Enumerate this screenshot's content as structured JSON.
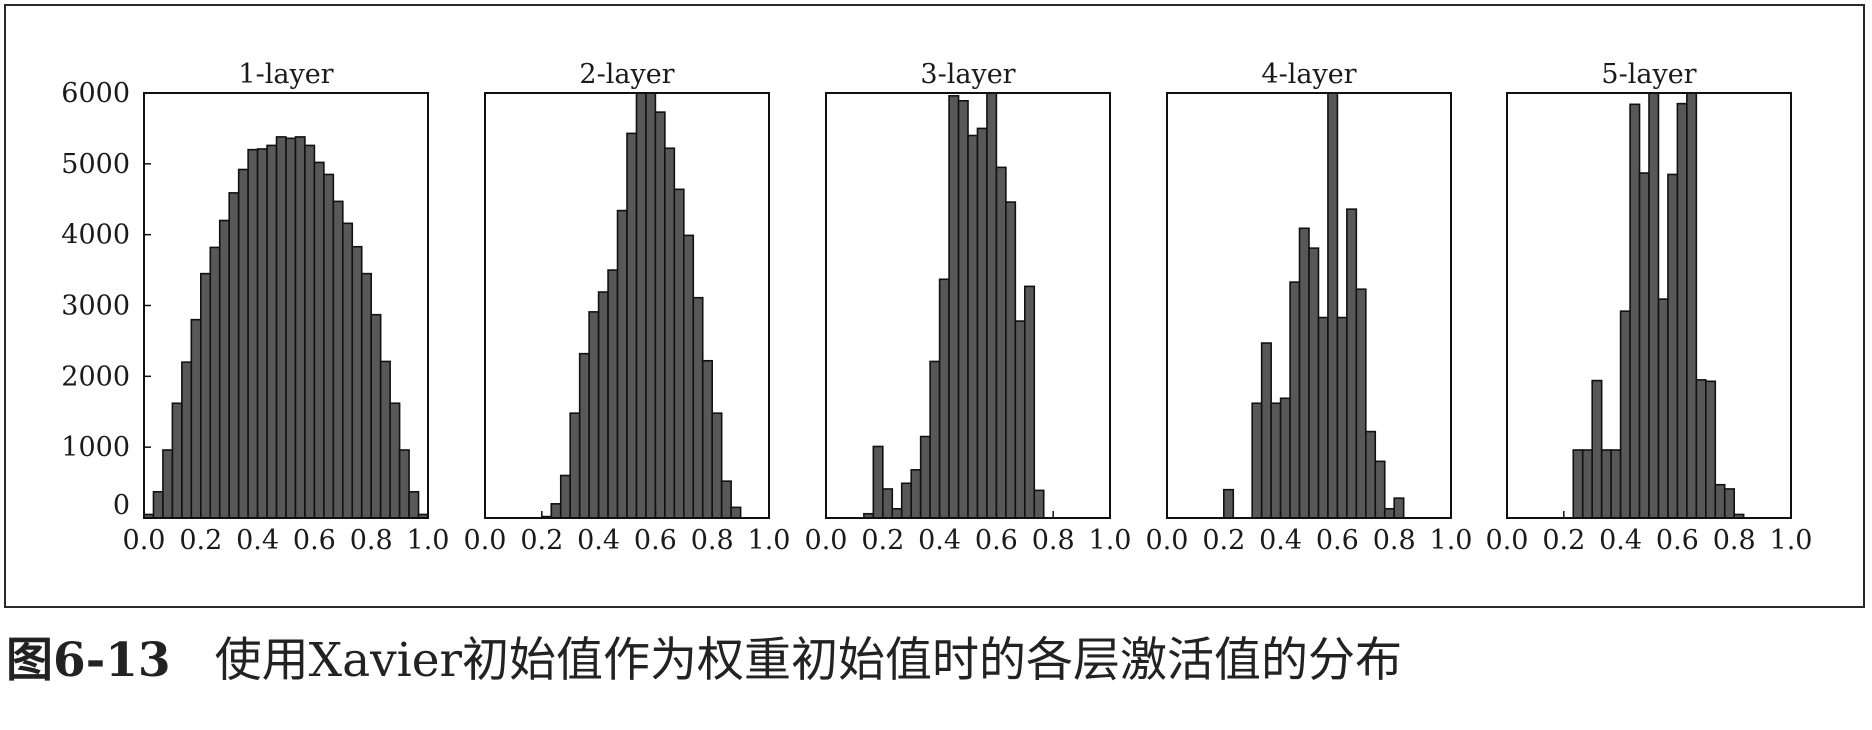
{
  "caption": {
    "figure_number": "图6-13",
    "text": "使用Xavier初始值作为权重初始值时的各层激活值的分布"
  },
  "colors": {
    "bar_fill": "#585858",
    "bar_edge": "#111111",
    "frame": "#2a2a2a"
  },
  "chart_data": [
    {
      "type": "bar",
      "title": "1-layer",
      "x_range": [
        0.0,
        1.0
      ],
      "ylim": [
        0,
        6000
      ],
      "bin_width": 0.033333,
      "x_ticks": [
        "0.0",
        "0.2",
        "0.4",
        "0.6",
        "0.8",
        "1.0"
      ],
      "y_ticks": [
        "0",
        "1000",
        "2000",
        "3000",
        "4000",
        "5000",
        "6000"
      ],
      "values": [
        50,
        370,
        960,
        1620,
        2200,
        2800,
        3450,
        3820,
        4200,
        4590,
        4920,
        5200,
        5210,
        5260,
        5380,
        5360,
        5380,
        5260,
        5020,
        4850,
        4470,
        4160,
        3830,
        3450,
        2870,
        2210,
        1620,
        960,
        370,
        50
      ]
    },
    {
      "type": "bar",
      "title": "2-layer",
      "x_range": [
        0.0,
        1.0
      ],
      "ylim": [
        0,
        6000
      ],
      "bin_width": 0.033333,
      "x_ticks": [
        "0.0",
        "0.2",
        "0.4",
        "0.6",
        "0.8",
        "1.0"
      ],
      "values": [
        0,
        0,
        0,
        0,
        0,
        0,
        20,
        200,
        600,
        1480,
        2320,
        2910,
        3190,
        3500,
        4340,
        5430,
        6000,
        6000,
        5730,
        5220,
        4640,
        3990,
        3110,
        2220,
        1480,
        520,
        150,
        0,
        0,
        0
      ]
    },
    {
      "type": "bar",
      "title": "3-layer",
      "x_range": [
        0.0,
        1.0
      ],
      "ylim": [
        0,
        6000
      ],
      "bin_width": 0.033333,
      "x_ticks": [
        "0.0",
        "0.2",
        "0.4",
        "0.6",
        "0.8",
        "1.0"
      ],
      "values": [
        0,
        0,
        0,
        0,
        60,
        1010,
        410,
        130,
        490,
        680,
        1150,
        2210,
        3370,
        5960,
        5890,
        5400,
        5500,
        6000,
        4950,
        4460,
        2780,
        3270,
        390,
        0,
        0,
        0,
        0,
        0,
        0,
        0
      ]
    },
    {
      "type": "bar",
      "title": "4-layer",
      "x_range": [
        0.0,
        1.0
      ],
      "ylim": [
        0,
        6000
      ],
      "bin_width": 0.033333,
      "x_ticks": [
        "0.0",
        "0.2",
        "0.4",
        "0.6",
        "0.8",
        "1.0"
      ],
      "values": [
        0,
        0,
        0,
        0,
        0,
        0,
        400,
        0,
        0,
        1620,
        2470,
        1620,
        1690,
        3330,
        4090,
        3810,
        2830,
        6000,
        2830,
        4360,
        3230,
        1220,
        800,
        130,
        280,
        0,
        0,
        0,
        0,
        0
      ]
    },
    {
      "type": "bar",
      "title": "5-layer",
      "x_range": [
        0.0,
        1.0
      ],
      "ylim": [
        0,
        6000
      ],
      "bin_width": 0.033333,
      "x_ticks": [
        "0.0",
        "0.2",
        "0.4",
        "0.6",
        "0.8",
        "1.0"
      ],
      "values": [
        0,
        0,
        0,
        0,
        0,
        0,
        0,
        960,
        960,
        1940,
        960,
        960,
        2920,
        5840,
        4870,
        6000,
        3090,
        4850,
        5850,
        6000,
        1950,
        1930,
        470,
        410,
        50,
        0,
        0,
        0,
        0,
        0
      ]
    }
  ]
}
